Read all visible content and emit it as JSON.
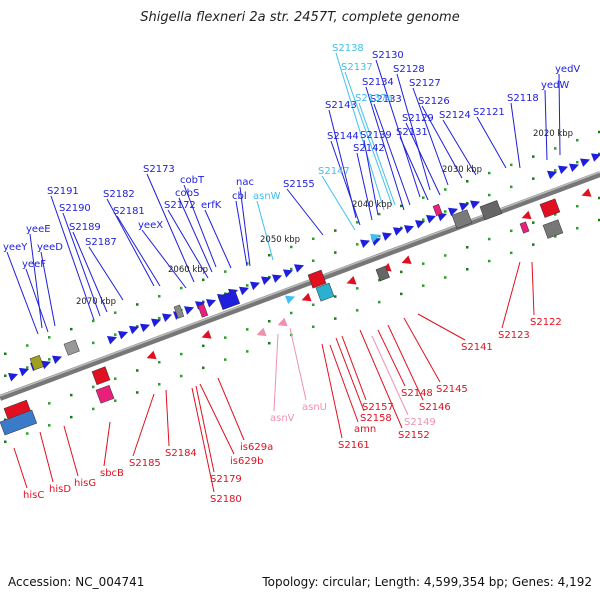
{
  "title": "Shigella flexneri 2a str. 2457T, complete genome",
  "footer": {
    "accession": "Accession: NC_004741",
    "stats": "Topology: circular; Length: 4,599,354 bp; Genes: 4,192"
  },
  "colors": {
    "forward_gene": "#1e1edc",
    "reverse_gene": "#e01020",
    "trna": "#40c0f0",
    "reverse_rna": "#f090b0",
    "backbone": "#7a7a7a"
  },
  "axis": {
    "ticks": [
      "2030 kbp",
      "2040 kbp",
      "2050 kbp",
      "2060 kbp",
      "2070 kbp",
      "2020 kbp"
    ]
  },
  "top_labels": [
    "yedV",
    "yedW",
    "S2118",
    "S2121",
    "S2124",
    "S2126",
    "S2127",
    "S2128",
    "S2129",
    "S2130",
    "S2131",
    "S2133",
    "S2134",
    "S2137a",
    "S2137",
    "S2138",
    "S2139",
    "S2142",
    "S2143",
    "S2144",
    "S2147",
    "S2155",
    "asnW",
    "cbl",
    "nac",
    "erfK",
    "cobT",
    "cobS",
    "S2172",
    "S2173",
    "yeeX",
    "S2181",
    "S2182",
    "S2187",
    "S2189",
    "S2190",
    "S2191",
    "yeeE",
    "yeeD",
    "yeeY",
    "yeeF"
  ],
  "bottom_labels": [
    "S2122",
    "S2123",
    "S2141",
    "S2145",
    "S2146",
    "S2148",
    "S2149",
    "S2152",
    "S2157",
    "S2158",
    "amn",
    "S2161",
    "asnU",
    "asnV",
    "is629a",
    "is629b",
    "S2179",
    "S2180",
    "S2184",
    "S2185",
    "sbcB",
    "hisG",
    "hisD",
    "hisC"
  ]
}
